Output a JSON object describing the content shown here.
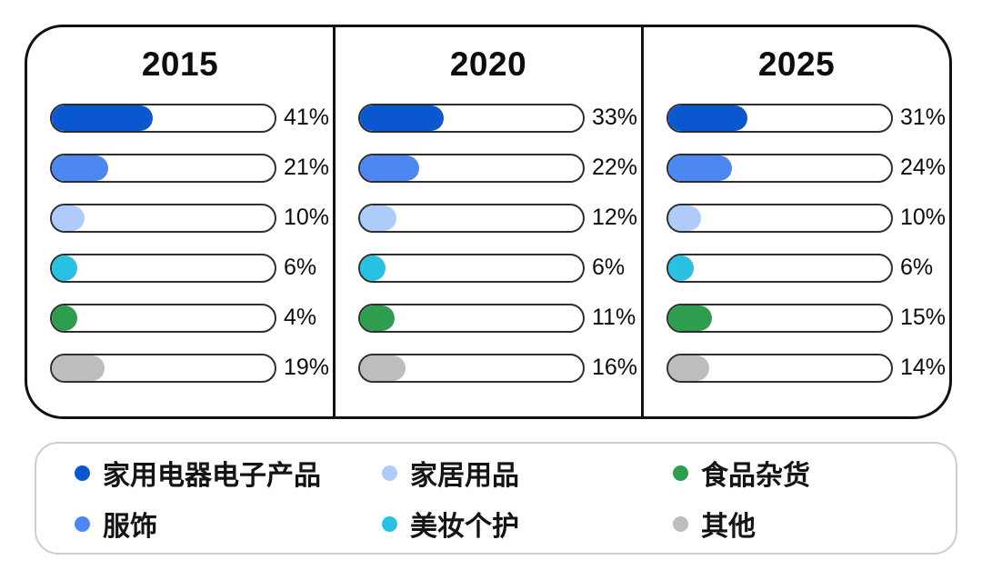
{
  "chart_data": {
    "type": "bar",
    "orientation": "horizontal",
    "unit": "%",
    "categories": [
      "家用电器电子产品",
      "服饰",
      "家居用品",
      "美妆个护",
      "食品杂货",
      "其他"
    ],
    "category_colors": [
      "#0B57D0",
      "#4D87F2",
      "#AECBFA",
      "#29C1E2",
      "#2E9E4E",
      "#BDBDBD"
    ],
    "panels": [
      {
        "title": "2015",
        "bars": [
          {
            "category": "家用电器电子产品",
            "value": 41,
            "label": "41%"
          },
          {
            "category": "服饰",
            "value": 21,
            "label": "21%"
          },
          {
            "category": "家居用品",
            "value": 10,
            "label": "10%"
          },
          {
            "category": "美妆个护",
            "value": 6,
            "label": "6%"
          },
          {
            "category": "食品杂货",
            "value": 4,
            "label": "4%"
          },
          {
            "category": "其他",
            "value": 19,
            "label": "19%"
          }
        ]
      },
      {
        "title": "2020",
        "bars": [
          {
            "category": "家用电器电子产品",
            "value": 33,
            "label": "33%"
          },
          {
            "category": "服饰",
            "value": 22,
            "label": "22%"
          },
          {
            "category": "家居用品",
            "value": 12,
            "label": "12%"
          },
          {
            "category": "美妆个护",
            "value": 6,
            "label": "6%"
          },
          {
            "category": "食品杂货",
            "value": 11,
            "label": "11%"
          },
          {
            "category": "其他",
            "value": 16,
            "label": "16%"
          }
        ]
      },
      {
        "title": "2025",
        "bars": [
          {
            "category": "家用电器电子产品",
            "value": 31,
            "label": "31%"
          },
          {
            "category": "服饰",
            "value": 24,
            "label": "24%"
          },
          {
            "category": "家居用品",
            "value": 10,
            "label": "10%"
          },
          {
            "category": "美妆个护",
            "value": 6,
            "label": "6%"
          },
          {
            "category": "食品杂货",
            "value": 15,
            "label": "15%"
          },
          {
            "category": "其他",
            "value": 14,
            "label": "14%"
          }
        ]
      }
    ],
    "legend_position": "bottom"
  },
  "legend": {
    "items": [
      {
        "label": "家用电器电子产品",
        "color": "#0B57D0"
      },
      {
        "label": "家居用品",
        "color": "#AECBFA"
      },
      {
        "label": "食品杂货",
        "color": "#2E9E4E"
      },
      {
        "label": "服饰",
        "color": "#4D87F2"
      },
      {
        "label": "美妆个护",
        "color": "#29C1E2"
      },
      {
        "label": "其他",
        "color": "#BDBDBD"
      }
    ]
  }
}
